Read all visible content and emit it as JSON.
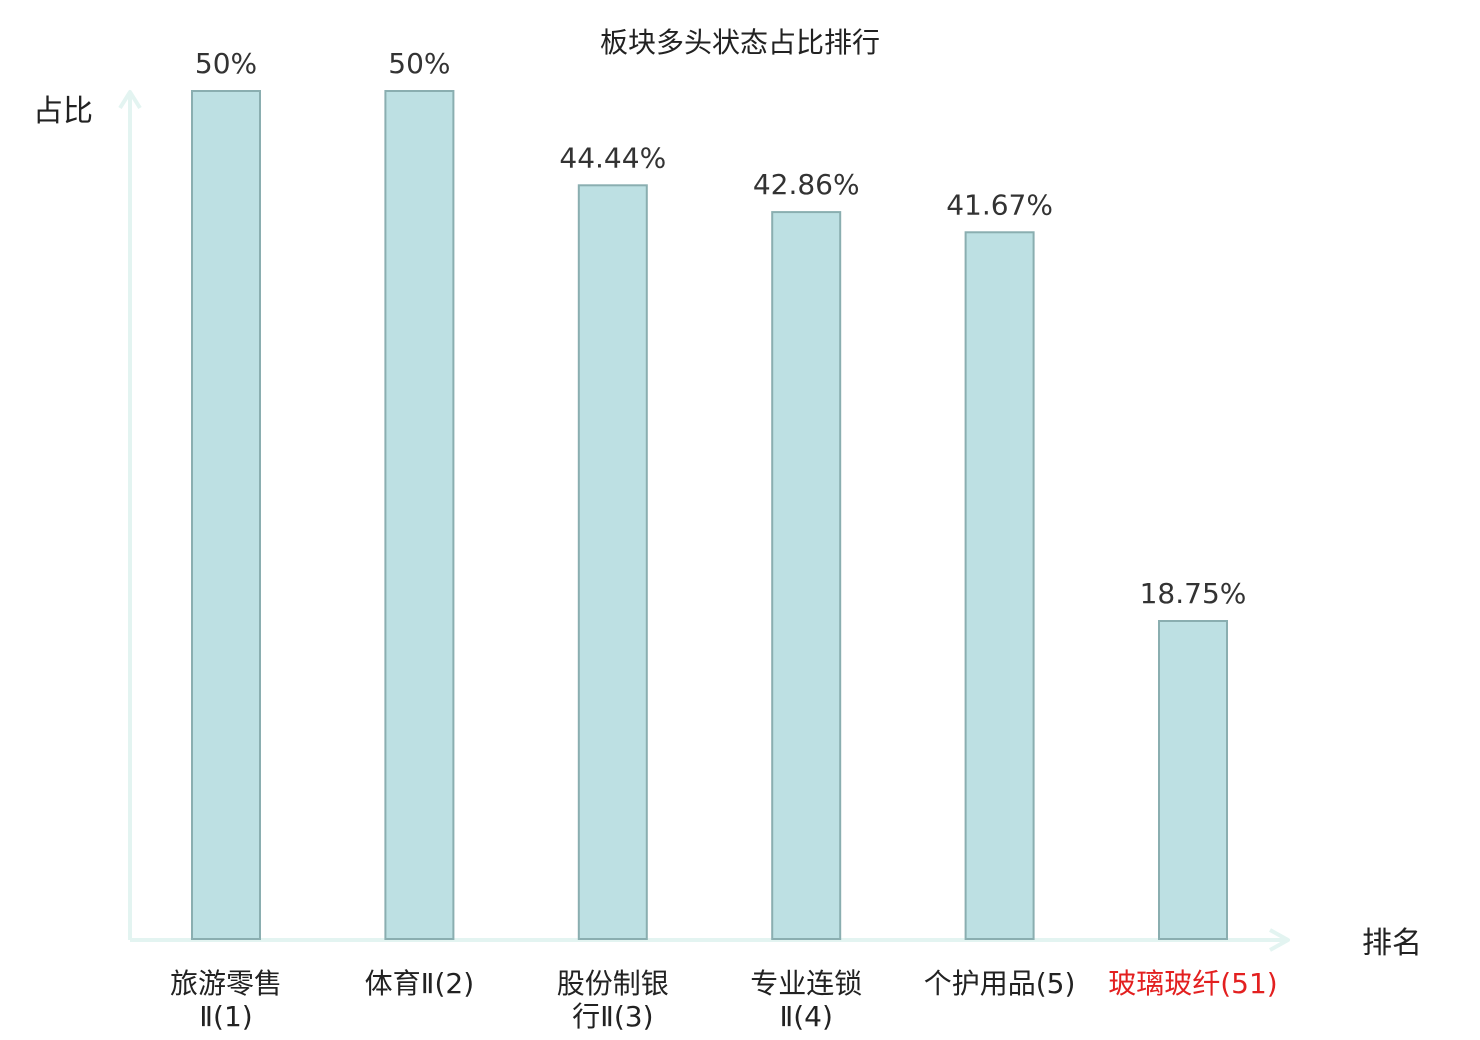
{
  "chart_data": {
    "type": "bar",
    "title": "板块多头状态占比排行",
    "ylabel": "占比",
    "xlabel": "排名",
    "ylim": [
      0,
      50
    ],
    "categories": [
      {
        "lines": [
          "旅游零售",
          "Ⅱ(1)"
        ],
        "highlight": false
      },
      {
        "lines": [
          "体育Ⅱ(2)"
        ],
        "highlight": false
      },
      {
        "lines": [
          "股份制银",
          "行Ⅱ(3)"
        ],
        "highlight": false
      },
      {
        "lines": [
          "专业连锁",
          "Ⅱ(4)"
        ],
        "highlight": false
      },
      {
        "lines": [
          "个护用品(5)"
        ],
        "highlight": false
      },
      {
        "lines": [
          "玻璃玻纤(51)"
        ],
        "highlight": true
      }
    ],
    "values": [
      50,
      50,
      44.44,
      42.86,
      41.67,
      18.75
    ],
    "value_labels": [
      "50%",
      "50%",
      "44.44%",
      "42.86%",
      "41.67%",
      "18.75%"
    ],
    "colors": {
      "bar_fill": "#bde0e3",
      "bar_stroke": "#8aaeb0",
      "axis": "#e3f4f1",
      "text": "#333333",
      "highlight_text": "#e32020"
    }
  }
}
